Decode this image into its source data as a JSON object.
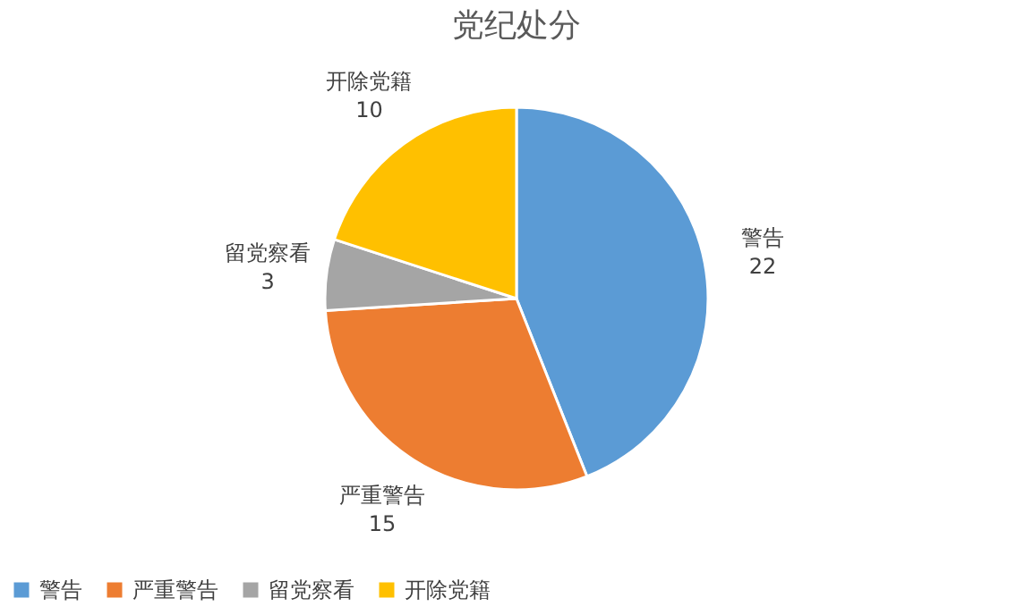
{
  "chart_data": {
    "type": "pie",
    "title": "党纪处分",
    "categories": [
      "警告",
      "严重警告",
      "留党察看",
      "开除党籍"
    ],
    "values": [
      22,
      15,
      3,
      10
    ],
    "colors": [
      "#5b9bd5",
      "#ed7d31",
      "#a5a5a5",
      "#ffc000"
    ],
    "data_labels": true,
    "legend": "bottom"
  }
}
